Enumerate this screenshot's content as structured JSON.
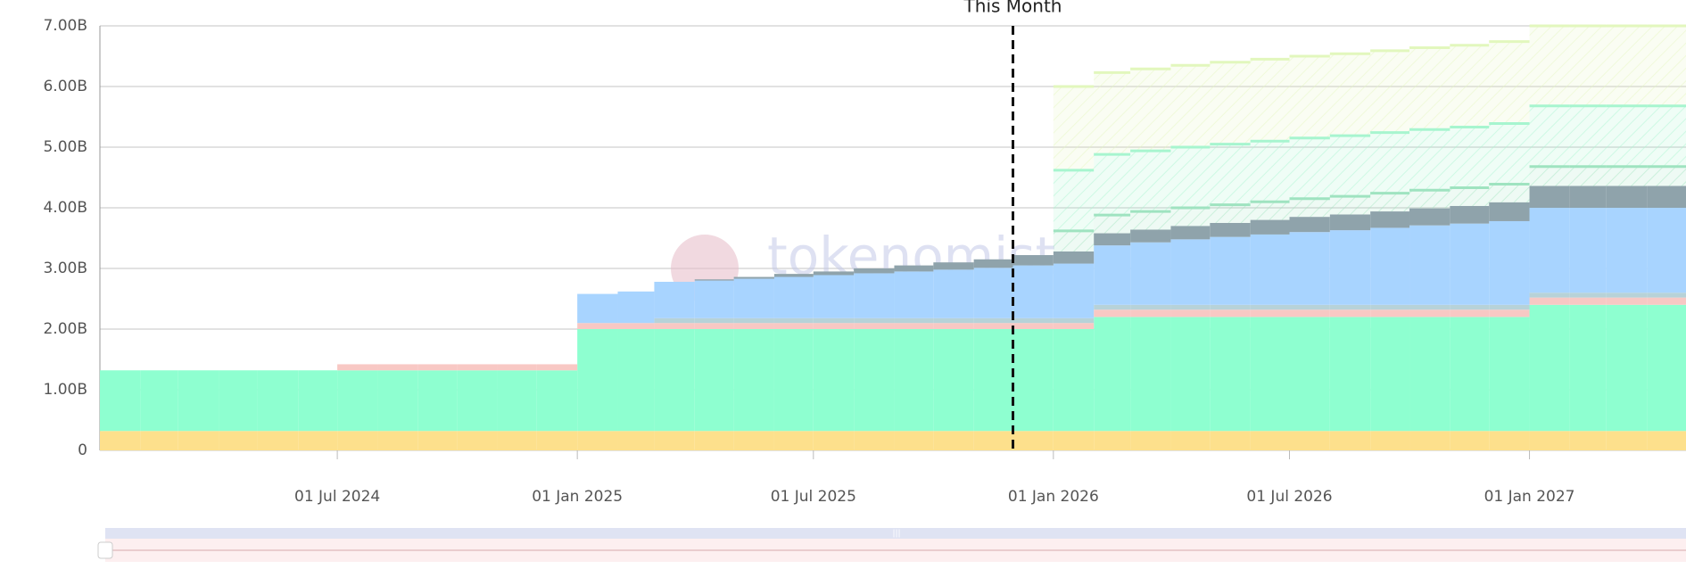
{
  "chart_data": {
    "type": "stacked_step_area",
    "x": [
      "2024-01-01",
      "2024-02-01",
      "2024-03-01",
      "2024-04-01",
      "2024-05-01",
      "2024-06-01",
      "2024-07-01",
      "2024-08-01",
      "2024-09-01",
      "2024-10-01",
      "2024-11-01",
      "2024-12-01",
      "2025-01-01",
      "2025-02-01",
      "2025-03-01",
      "2025-04-01",
      "2025-05-01",
      "2025-06-01",
      "2025-07-01",
      "2025-08-01",
      "2025-09-01",
      "2025-10-01",
      "2025-11-01",
      "2025-12-01",
      "2026-01-01",
      "2026-02-01",
      "2026-03-01",
      "2026-04-01",
      "2026-05-01",
      "2026-06-01",
      "2026-07-01",
      "2026-08-01",
      "2026-09-01",
      "2026-10-01",
      "2026-11-01",
      "2026-12-01",
      "2027-01-01",
      "2027-02-01",
      "2027-03-01",
      "2027-04-01"
    ],
    "xlim": [
      "2024-01-01",
      "2027-05-01"
    ],
    "xticks": [
      {
        "value": "2024-07-01",
        "label": "01 Jul 2024"
      },
      {
        "value": "2025-01-01",
        "label": "01 Jan 2025"
      },
      {
        "value": "2025-07-01",
        "label": "01 Jul 2025"
      },
      {
        "value": "2026-01-01",
        "label": "01 Jan 2026"
      },
      {
        "value": "2026-07-01",
        "label": "01 Jul 2026"
      },
      {
        "value": "2027-01-01",
        "label": "01 Jan 2027"
      }
    ],
    "ylim": [
      0,
      7
    ],
    "yticks": [
      0,
      {
        "value": 1,
        "label": "1.00B"
      },
      {
        "value": 2,
        "label": "2.00B"
      },
      {
        "value": 3,
        "label": "3.00B"
      },
      {
        "value": 4,
        "label": "4.00B"
      },
      {
        "value": 5,
        "label": "5.00B"
      },
      {
        "value": 6,
        "label": "6.00B"
      },
      {
        "value": 7,
        "label": "7.00B"
      }
    ],
    "grid": true,
    "watermark": "tokenomist",
    "annotations": [
      {
        "text": "This Month",
        "x": "2025-12-01"
      }
    ],
    "series": [
      {
        "color": "#fde08c",
        "values": [
          0.32,
          0.32,
          0.32,
          0.32,
          0.32,
          0.32,
          0.32,
          0.32,
          0.32,
          0.32,
          0.32,
          0.32,
          0.32,
          0.32,
          0.32,
          0.32,
          0.32,
          0.32,
          0.32,
          0.32,
          0.32,
          0.32,
          0.32,
          0.32,
          0.32,
          0.32,
          0.32,
          0.32,
          0.32,
          0.32,
          0.32,
          0.32,
          0.32,
          0.32,
          0.32,
          0.32,
          0.32,
          0.32,
          0.32,
          0.32
        ]
      },
      {
        "color": "#8effd0",
        "values": [
          1.0,
          1.0,
          1.0,
          1.0,
          1.0,
          1.0,
          1.0,
          1.0,
          1.0,
          1.0,
          1.0,
          1.0,
          1.68,
          1.68,
          1.68,
          1.68,
          1.68,
          1.68,
          1.68,
          1.68,
          1.68,
          1.68,
          1.68,
          1.68,
          1.68,
          1.88,
          1.88,
          1.88,
          1.88,
          1.88,
          1.88,
          1.88,
          1.88,
          1.88,
          1.88,
          1.88,
          2.08,
          2.08,
          2.08,
          2.08
        ]
      },
      {
        "color": "#f8c8c4",
        "values": [
          0,
          0,
          0,
          0,
          0,
          0,
          0.1,
          0.1,
          0.1,
          0.1,
          0.1,
          0.1,
          0.1,
          0.1,
          0.1,
          0.1,
          0.1,
          0.1,
          0.1,
          0.1,
          0.1,
          0.1,
          0.1,
          0.1,
          0.1,
          0.12,
          0.12,
          0.12,
          0.12,
          0.12,
          0.12,
          0.12,
          0.12,
          0.12,
          0.12,
          0.12,
          0.12,
          0.12,
          0.12,
          0.12
        ]
      },
      {
        "color": "#b7d2d8",
        "values": [
          0,
          0,
          0,
          0,
          0,
          0,
          0,
          0,
          0,
          0,
          0,
          0,
          0,
          0,
          0.08,
          0.08,
          0.08,
          0.08,
          0.08,
          0.08,
          0.08,
          0.08,
          0.08,
          0.08,
          0.08,
          0.08,
          0.08,
          0.08,
          0.08,
          0.08,
          0.08,
          0.08,
          0.08,
          0.08,
          0.08,
          0.08,
          0.08,
          0.08,
          0.08,
          0.08
        ]
      },
      {
        "color": "#a8d4ff",
        "values": [
          0,
          0,
          0,
          0,
          0,
          0,
          0,
          0,
          0,
          0,
          0,
          0,
          0.48,
          0.52,
          0.6,
          0.62,
          0.65,
          0.68,
          0.71,
          0.74,
          0.77,
          0.8,
          0.83,
          0.87,
          0.9,
          0.98,
          1.03,
          1.08,
          1.12,
          1.16,
          1.2,
          1.23,
          1.27,
          1.31,
          1.34,
          1.38,
          1.4,
          1.4,
          1.4,
          1.4
        ]
      },
      {
        "color": "#8fa3ab",
        "values": [
          0,
          0,
          0,
          0,
          0,
          0,
          0,
          0,
          0,
          0,
          0,
          0,
          0,
          0,
          0,
          0.02,
          0.03,
          0.05,
          0.06,
          0.08,
          0.1,
          0.12,
          0.14,
          0.17,
          0.2,
          0.2,
          0.21,
          0.22,
          0.23,
          0.24,
          0.25,
          0.26,
          0.27,
          0.28,
          0.29,
          0.31,
          0.36,
          0.36,
          0.36,
          0.36
        ]
      },
      {
        "color": "#9fe3c0",
        "hatch": true,
        "values": [
          null,
          null,
          null,
          null,
          null,
          null,
          null,
          null,
          null,
          null,
          null,
          null,
          null,
          null,
          null,
          null,
          null,
          null,
          null,
          null,
          null,
          null,
          null,
          null,
          0.34,
          0.3,
          0.3,
          0.3,
          0.3,
          0.3,
          0.3,
          0.3,
          0.3,
          0.3,
          0.3,
          0.3,
          0.32,
          0.32,
          0.32,
          0.32
        ]
      },
      {
        "color": "#a7f5cf",
        "hatch": true,
        "values": [
          null,
          null,
          null,
          null,
          null,
          null,
          null,
          null,
          null,
          null,
          null,
          null,
          null,
          null,
          null,
          null,
          null,
          null,
          null,
          null,
          null,
          null,
          null,
          null,
          1.0,
          1.0,
          1.0,
          1.0,
          1.0,
          1.0,
          1.0,
          1.0,
          1.0,
          1.0,
          1.0,
          1.0,
          1.0,
          1.0,
          1.0,
          1.0
        ]
      },
      {
        "color": "#e2f7bd",
        "hatch": true,
        "values": [
          null,
          null,
          null,
          null,
          null,
          null,
          null,
          null,
          null,
          null,
          null,
          null,
          null,
          null,
          null,
          null,
          null,
          null,
          null,
          null,
          null,
          null,
          null,
          null,
          1.38,
          1.35,
          1.35,
          1.35,
          1.35,
          1.35,
          1.35,
          1.35,
          1.35,
          1.35,
          1.35,
          1.35,
          1.32,
          1.32,
          1.32,
          1.32
        ]
      }
    ]
  }
}
